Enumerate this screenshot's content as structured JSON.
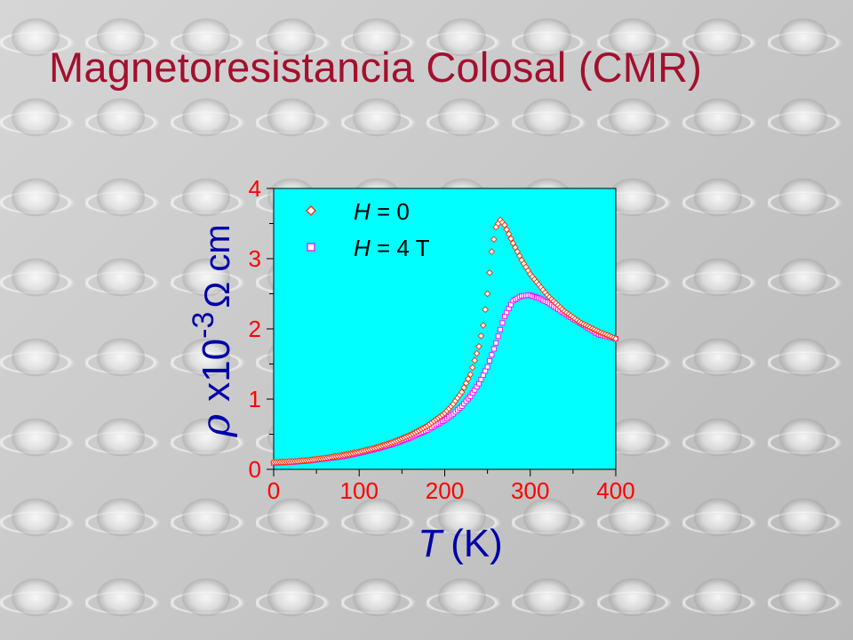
{
  "slide": {
    "title": "Magnetoresistancia Colosal (CMR)"
  },
  "colors": {
    "title": "#a3102e",
    "plot_bg": "#00ffff",
    "tick_labels": "#ff0000",
    "axis_labels": "#0000aa",
    "series1": "#ff2a00",
    "series2": "#ff00ff"
  },
  "chart_data": {
    "type": "scatter",
    "xlabel_italic": "T",
    "xlabel_unit": "(K)",
    "ylabel_symbol": "ρ",
    "ylabel_text": "x10",
    "ylabel_exp": "-3",
    "ylabel_unit": "Ω cm",
    "xlim": [
      0,
      400
    ],
    "ylim": [
      0,
      4
    ],
    "xticks": [
      0,
      100,
      200,
      300,
      400
    ],
    "xtick_labels": [
      "0",
      "100",
      "200",
      "300",
      "400"
    ],
    "yticks": [
      0,
      1,
      2,
      3,
      4
    ],
    "ytick_labels": [
      "0",
      "1",
      "2",
      "3",
      "4"
    ],
    "grid": false,
    "legend_position": "top-left",
    "series": [
      {
        "name": "H = 0",
        "name_italic": "H",
        "name_rest": " = 0",
        "marker": "diamond",
        "x": [
          0,
          20,
          40,
          60,
          80,
          100,
          120,
          140,
          160,
          180,
          200,
          210,
          220,
          230,
          240,
          245,
          250,
          255,
          260,
          265,
          270,
          280,
          290,
          300,
          320,
          340,
          360,
          380,
          400
        ],
        "y": [
          0.1,
          0.11,
          0.13,
          0.16,
          0.2,
          0.25,
          0.31,
          0.39,
          0.49,
          0.62,
          0.8,
          0.93,
          1.1,
          1.35,
          1.75,
          2.05,
          2.5,
          3.1,
          3.45,
          3.55,
          3.48,
          3.22,
          2.98,
          2.78,
          2.48,
          2.25,
          2.08,
          1.96,
          1.86
        ]
      },
      {
        "name": "H = 4 T",
        "name_italic": "H",
        "name_rest": " = 4 T",
        "marker": "square",
        "x": [
          0,
          20,
          40,
          60,
          80,
          100,
          120,
          140,
          160,
          180,
          200,
          210,
          220,
          230,
          240,
          250,
          260,
          270,
          280,
          290,
          300,
          310,
          320,
          340,
          360,
          380,
          400
        ],
        "y": [
          0.09,
          0.1,
          0.12,
          0.15,
          0.18,
          0.23,
          0.29,
          0.36,
          0.45,
          0.56,
          0.7,
          0.79,
          0.9,
          1.04,
          1.22,
          1.46,
          1.8,
          2.18,
          2.4,
          2.47,
          2.48,
          2.44,
          2.38,
          2.22,
          2.07,
          1.92,
          1.86
        ]
      }
    ]
  }
}
